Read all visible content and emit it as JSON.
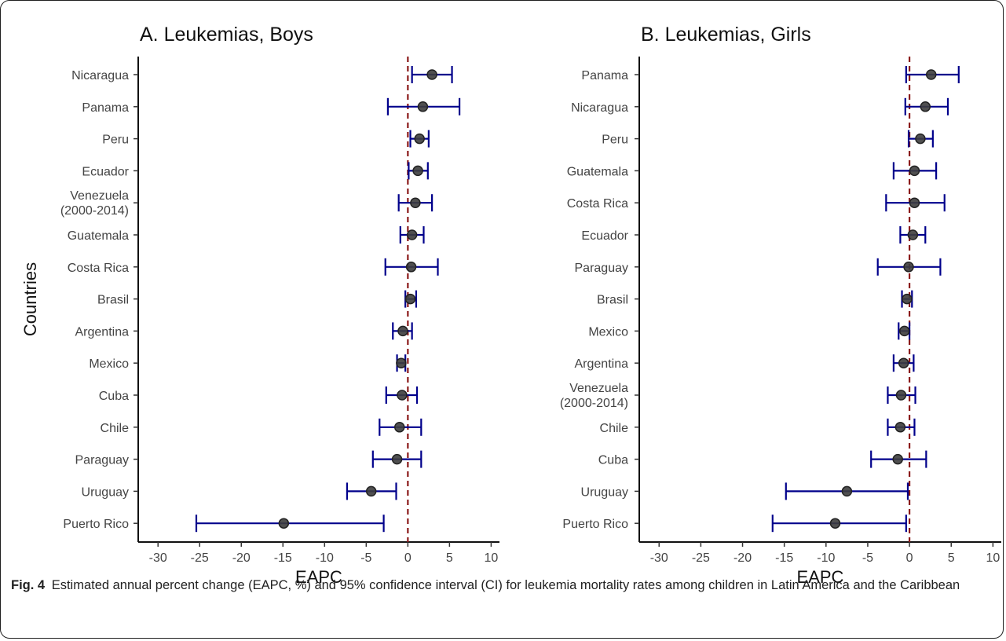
{
  "chart_data": [
    {
      "type": "forest",
      "title": "A. Leukemias, Boys",
      "xlabel": "EAPC",
      "ylabel": "Countries",
      "xlim": [
        -32,
        11
      ],
      "xticks": [
        -30,
        -25,
        -20,
        -15,
        -10,
        -5,
        0,
        5,
        10
      ],
      "reference_line": 0,
      "colors": {
        "ci": "#00008b",
        "point": "#3d3d3d",
        "reference": "#8b1a1a"
      },
      "rows": [
        {
          "label": [
            "Nicaragua"
          ],
          "estimate": 2.9,
          "lower": 0.5,
          "upper": 5.3
        },
        {
          "label": [
            "Panama"
          ],
          "estimate": 1.8,
          "lower": -2.4,
          "upper": 6.2
        },
        {
          "label": [
            "Peru"
          ],
          "estimate": 1.4,
          "lower": 0.3,
          "upper": 2.5
        },
        {
          "label": [
            "Ecuador"
          ],
          "estimate": 1.2,
          "lower": 0.1,
          "upper": 2.4
        },
        {
          "label": [
            "Venezuela",
            "(2000-2014)"
          ],
          "estimate": 0.9,
          "lower": -1.1,
          "upper": 2.9
        },
        {
          "label": [
            "Guatemala"
          ],
          "estimate": 0.5,
          "lower": -0.9,
          "upper": 1.9
        },
        {
          "label": [
            "Costa Rica"
          ],
          "estimate": 0.4,
          "lower": -2.7,
          "upper": 3.6
        },
        {
          "label": [
            "Brasil"
          ],
          "estimate": 0.3,
          "lower": -0.3,
          "upper": 1.0
        },
        {
          "label": [
            "Argentina"
          ],
          "estimate": -0.6,
          "lower": -1.8,
          "upper": 0.5
        },
        {
          "label": [
            "Mexico"
          ],
          "estimate": -0.8,
          "lower": -1.3,
          "upper": -0.3
        },
        {
          "label": [
            "Cuba"
          ],
          "estimate": -0.7,
          "lower": -2.6,
          "upper": 1.1
        },
        {
          "label": [
            "Chile"
          ],
          "estimate": -1.0,
          "lower": -3.4,
          "upper": 1.6
        },
        {
          "label": [
            "Paraguay"
          ],
          "estimate": -1.3,
          "lower": -4.2,
          "upper": 1.6
        },
        {
          "label": [
            "Uruguay"
          ],
          "estimate": -4.4,
          "lower": -7.3,
          "upper": -1.4
        },
        {
          "label": [
            "Puerto Rico"
          ],
          "estimate": -14.9,
          "lower": -25.4,
          "upper": -2.9
        }
      ]
    },
    {
      "type": "forest",
      "title": "B. Leukemias, Girls",
      "xlabel": "EAPC",
      "ylabel": "",
      "xlim": [
        -32,
        11
      ],
      "xticks": [
        -30,
        -25,
        -20,
        -15,
        -10,
        -5,
        0,
        5,
        10
      ],
      "reference_line": 0,
      "colors": {
        "ci": "#00008b",
        "point": "#3d3d3d",
        "reference": "#8b1a1a"
      },
      "rows": [
        {
          "label": [
            "Panama"
          ],
          "estimate": 2.6,
          "lower": -0.4,
          "upper": 5.9
        },
        {
          "label": [
            "Nicaragua"
          ],
          "estimate": 1.9,
          "lower": -0.5,
          "upper": 4.6
        },
        {
          "label": [
            "Peru"
          ],
          "estimate": 1.3,
          "lower": -0.1,
          "upper": 2.8
        },
        {
          "label": [
            "Guatemala"
          ],
          "estimate": 0.6,
          "lower": -1.9,
          "upper": 3.2
        },
        {
          "label": [
            "Costa Rica"
          ],
          "estimate": 0.6,
          "lower": -2.8,
          "upper": 4.2
        },
        {
          "label": [
            "Ecuador"
          ],
          "estimate": 0.4,
          "lower": -1.1,
          "upper": 1.9
        },
        {
          "label": [
            "Paraguay"
          ],
          "estimate": -0.1,
          "lower": -3.8,
          "upper": 3.7
        },
        {
          "label": [
            "Brasil"
          ],
          "estimate": -0.3,
          "lower": -0.9,
          "upper": 0.3
        },
        {
          "label": [
            "Mexico"
          ],
          "estimate": -0.6,
          "lower": -1.3,
          "upper": 0.0
        },
        {
          "label": [
            "Argentina"
          ],
          "estimate": -0.7,
          "lower": -1.9,
          "upper": 0.5
        },
        {
          "label": [
            "Venezuela",
            "(2000-2014)"
          ],
          "estimate": -1.0,
          "lower": -2.6,
          "upper": 0.7
        },
        {
          "label": [
            "Chile"
          ],
          "estimate": -1.1,
          "lower": -2.6,
          "upper": 0.6
        },
        {
          "label": [
            "Cuba"
          ],
          "estimate": -1.4,
          "lower": -4.6,
          "upper": 2.0
        },
        {
          "label": [
            "Uruguay"
          ],
          "estimate": -7.5,
          "lower": -14.8,
          "upper": -0.2
        },
        {
          "label": [
            "Puerto Rico"
          ],
          "estimate": -8.9,
          "lower": -16.4,
          "upper": -0.4
        }
      ]
    }
  ],
  "caption": {
    "label": "Fig. 4",
    "text": "Estimated annual percent change (EAPC, %) and 95% confidence interval (CI) for leukemia mortality rates among children in Latin America and the Caribbean"
  }
}
